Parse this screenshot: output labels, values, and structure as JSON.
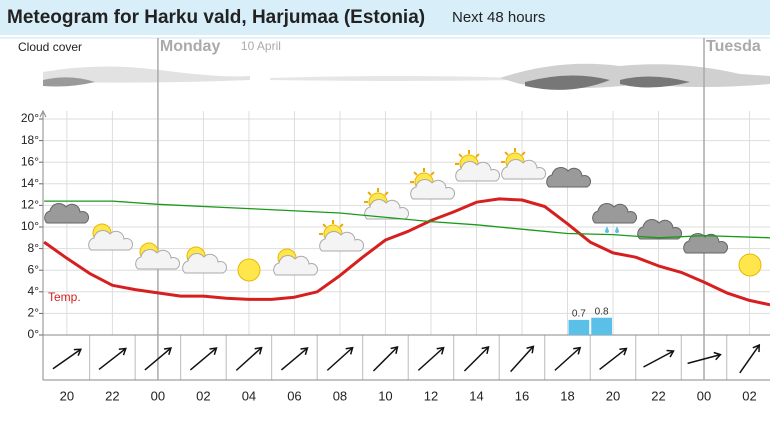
{
  "chart_data": {
    "type": "line",
    "title": "Meteogram for Harku vald, Harjumaa (Estonia)",
    "subtitle": "Next 48 hours",
    "cloud_cover_label": "Cloud cover",
    "days": [
      {
        "name": "Monday",
        "date": "10 April",
        "x": 4
      },
      {
        "name": "Tuesda",
        "x": 28
      }
    ],
    "xlim": [
      -1.05,
      30.9
    ],
    "xticks": [
      {
        "value": 0,
        "label": "20"
      },
      {
        "value": 2,
        "label": "22"
      },
      {
        "value": 4,
        "label": "00"
      },
      {
        "value": 6,
        "label": "02"
      },
      {
        "value": 8,
        "label": "04"
      },
      {
        "value": 10,
        "label": "06"
      },
      {
        "value": 12,
        "label": "08"
      },
      {
        "value": 14,
        "label": "10"
      },
      {
        "value": 16,
        "label": "12"
      },
      {
        "value": 18,
        "label": "14"
      },
      {
        "value": 20,
        "label": "16"
      },
      {
        "value": 22,
        "label": "18"
      },
      {
        "value": 24,
        "label": "20"
      },
      {
        "value": 26,
        "label": "22"
      },
      {
        "value": 28,
        "label": "00"
      },
      {
        "value": 30,
        "label": "02"
      }
    ],
    "ylim": [
      0,
      20
    ],
    "yticks": [
      {
        "value": 0,
        "label": "0°"
      },
      {
        "value": 2,
        "label": "2°"
      },
      {
        "value": 4,
        "label": "4°"
      },
      {
        "value": 6,
        "label": "6°"
      },
      {
        "value": 8,
        "label": "8°"
      },
      {
        "value": 10,
        "label": "10°"
      },
      {
        "value": 12,
        "label": "12°"
      },
      {
        "value": 14,
        "label": "14°"
      },
      {
        "value": 16,
        "label": "16°"
      },
      {
        "value": 18,
        "label": "18°"
      },
      {
        "value": 20,
        "label": "20°"
      }
    ],
    "y2lim": [
      0,
      10
    ],
    "grid": true,
    "series": [
      {
        "name": "Temp.",
        "color": "#d62020",
        "x": [
          -1,
          0,
          1,
          2,
          3,
          4,
          5,
          6,
          7,
          8,
          9,
          10,
          11,
          12,
          13,
          14,
          15,
          16,
          17,
          18,
          19,
          20,
          21,
          22,
          23,
          24,
          25,
          26,
          27,
          28,
          29,
          30,
          30.9
        ],
        "values": [
          8.6,
          7.1,
          5.7,
          4.6,
          4.2,
          3.9,
          3.6,
          3.6,
          3.4,
          3.3,
          3.3,
          3.5,
          4.0,
          5.5,
          7.2,
          8.8,
          9.6,
          10.6,
          11.4,
          12.3,
          12.6,
          12.5,
          11.9,
          10.3,
          8.6,
          7.6,
          7.2,
          6.4,
          5.8,
          4.9,
          3.9,
          3.2,
          2.8
        ]
      },
      {
        "color": "#1a9a1a",
        "x": [
          -1,
          2,
          4,
          8,
          12,
          16,
          18,
          20,
          22,
          24,
          26,
          28,
          30.9
        ],
        "values": [
          12.4,
          12.4,
          12.1,
          11.7,
          11.3,
          10.5,
          10.2,
          9.8,
          9.4,
          9.3,
          9.0,
          9.2,
          9.0
        ]
      },
      {
        "type": "bar",
        "axis": "y2",
        "color": "#5bc0e8",
        "x": [
          22,
          23
        ],
        "values": [
          0.7,
          0.8
        ]
      }
    ]
  }
}
